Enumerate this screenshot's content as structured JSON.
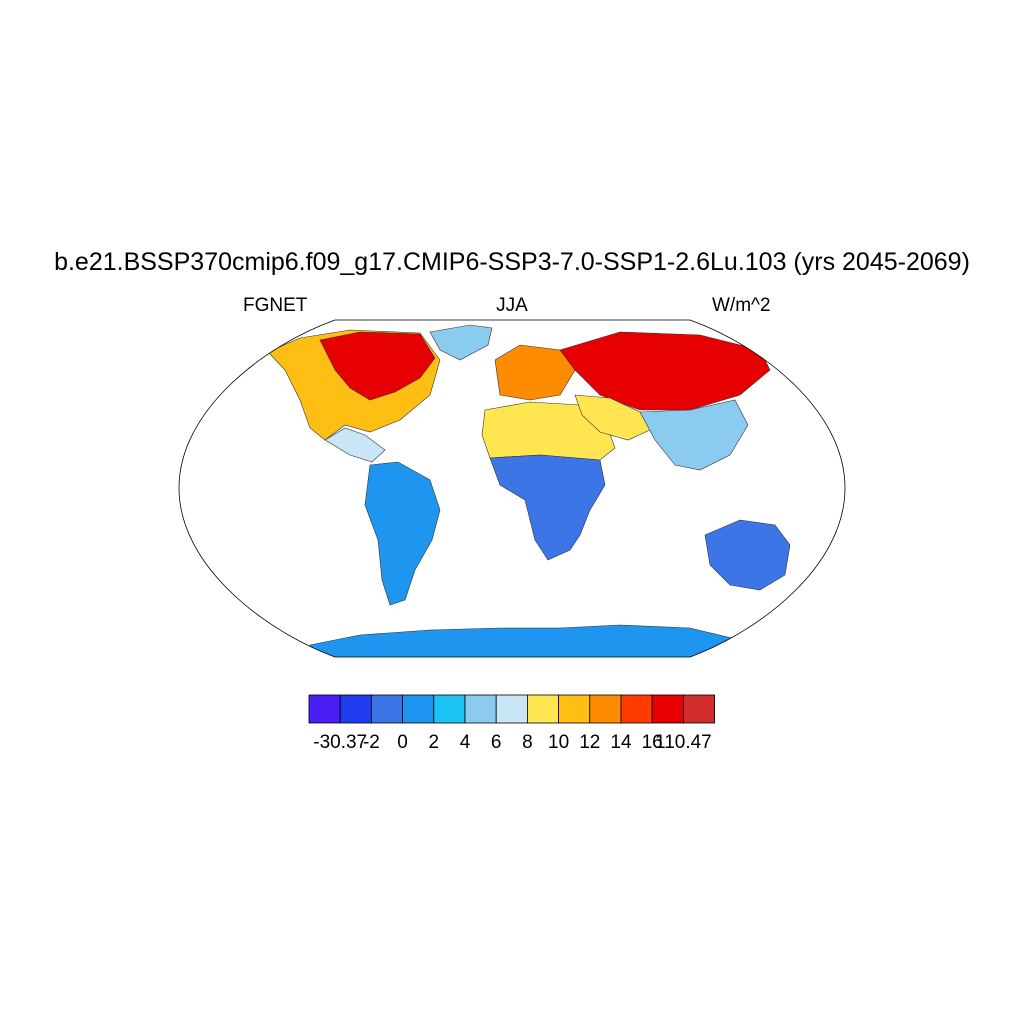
{
  "title": "b.e21.BSSP370cmip6.f09_g17.CMIP6-SSP3-7.0-SSP1-2.6Lu.103 (yrs 2045-2069)",
  "left_label": "FGNET",
  "center_label": "JJA",
  "right_label": "W/m^2",
  "map": {
    "projection": "robinson",
    "background": "#ffffff",
    "outline_color": "#000000",
    "regions": [
      {
        "name": "north-america-high",
        "level": "16"
      },
      {
        "name": "north-america-mid",
        "level": "10"
      },
      {
        "name": "greenland",
        "level": "4"
      },
      {
        "name": "central-america",
        "level": "6"
      },
      {
        "name": "south-america",
        "level": "0"
      },
      {
        "name": "africa-north",
        "level": "8"
      },
      {
        "name": "africa-south",
        "level": "-2"
      },
      {
        "name": "europe",
        "level": "12"
      },
      {
        "name": "eurasia-north",
        "level": "16"
      },
      {
        "name": "middle-east",
        "level": "8"
      },
      {
        "name": "asia-south",
        "level": "4"
      },
      {
        "name": "australia",
        "level": "-2"
      },
      {
        "name": "antarctica",
        "level": "0"
      }
    ]
  },
  "colorbar": {
    "colors": [
      "#4a1ff5",
      "#1f3cf0",
      "#3c75e6",
      "#1e96f0",
      "#1ec3f5",
      "#8ccbf0",
      "#c8e6f5",
      "#ffe650",
      "#ffbe14",
      "#ff8c00",
      "#ff3c00",
      "#e60000",
      "#d22d2d"
    ],
    "tick_labels": [
      "-30.37",
      "-2",
      "0",
      "2",
      "4",
      "6",
      "8",
      "10",
      "12",
      "14",
      "16",
      "110.47"
    ]
  }
}
